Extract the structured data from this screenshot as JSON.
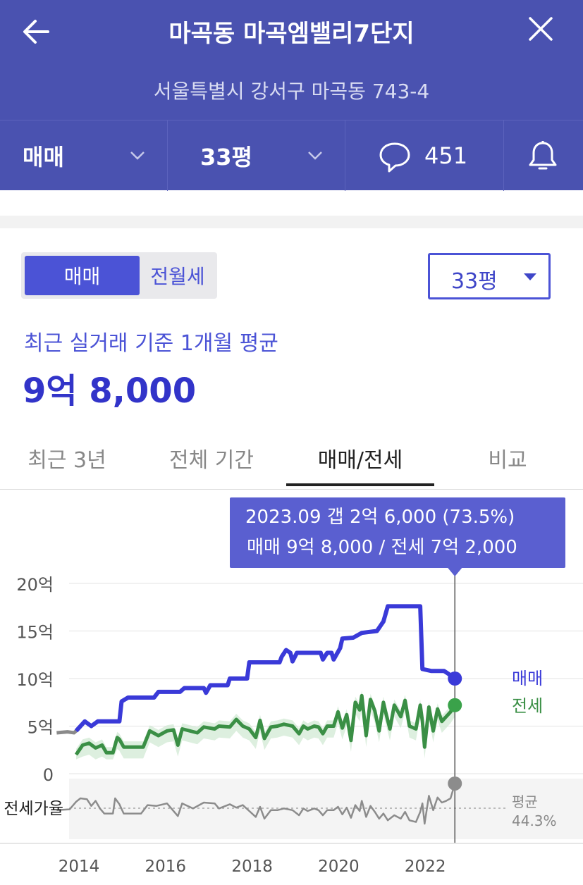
{
  "header": {
    "title": "마곡동 마곡엠밸리7단지",
    "address": "서울특별시 강서구 마곡동 743-4"
  },
  "filters": {
    "trade_type": "매매",
    "area": "33평",
    "comment_count": "451"
  },
  "panel": {
    "segments": [
      "매매",
      "전월세"
    ],
    "active_segment": "매매",
    "area_select": "33평",
    "avg_caption": "최근 실거래 기준 1개월 평균",
    "avg_price": "9억 8,000"
  },
  "tabs": [
    "최근 3년",
    "전체 기간",
    "매매/전세",
    "비교"
  ],
  "active_tab": "매매/전세",
  "tooltip": {
    "line1": "2023.09  갭 2억 6,000 (73.5%)",
    "line2": "매매 9억 8,000 / 전세 7억 2,000"
  },
  "colors": {
    "header_bg": "#4a52b0",
    "sale": "#3a3ad8",
    "jeonse": "#3a8f45",
    "ratio": "#8c8c8c",
    "tooltip_bg": "#5a5fd0"
  },
  "chart_data": {
    "type": "line",
    "ylabel": "",
    "y_ticks": [
      "20억",
      "15억",
      "10억",
      "5억",
      "0"
    ],
    "ylim": [
      0,
      20
    ],
    "x_ticks": [
      "2014",
      "2016",
      "2018",
      "2020",
      "2022"
    ],
    "xlim": [
      2013.6,
      2024.2
    ],
    "grid": true,
    "series": [
      {
        "name": "매매",
        "unit": "억",
        "points": [
          [
            2014.0,
            4.5
          ],
          [
            2014.2,
            5.5
          ],
          [
            2014.35,
            5.0
          ],
          [
            2014.5,
            5.5
          ],
          [
            2015.0,
            5.5
          ],
          [
            2015.05,
            7.6
          ],
          [
            2015.2,
            8.0
          ],
          [
            2015.8,
            8.0
          ],
          [
            2015.9,
            8.6
          ],
          [
            2016.4,
            8.6
          ],
          [
            2016.5,
            9.0
          ],
          [
            2016.95,
            9.0
          ],
          [
            2017.0,
            8.5
          ],
          [
            2017.1,
            9.3
          ],
          [
            2017.5,
            9.3
          ],
          [
            2017.55,
            10.0
          ],
          [
            2017.95,
            10.0
          ],
          [
            2018.0,
            11.7
          ],
          [
            2018.7,
            11.7
          ],
          [
            2018.75,
            12.3
          ],
          [
            2018.85,
            13.0
          ],
          [
            2018.95,
            12.7
          ],
          [
            2019.0,
            11.8
          ],
          [
            2019.1,
            12.7
          ],
          [
            2019.65,
            12.7
          ],
          [
            2019.7,
            12.0
          ],
          [
            2019.8,
            12.7
          ],
          [
            2019.9,
            12.7
          ],
          [
            2019.95,
            12.0
          ],
          [
            2020.1,
            13.2
          ],
          [
            2020.15,
            14.2
          ],
          [
            2020.4,
            14.3
          ],
          [
            2020.6,
            14.8
          ],
          [
            2020.95,
            15.0
          ],
          [
            2021.1,
            16.0
          ],
          [
            2021.2,
            17.6
          ],
          [
            2021.95,
            17.6
          ],
          [
            2022.0,
            11.0
          ],
          [
            2022.2,
            10.8
          ],
          [
            2022.5,
            10.8
          ],
          [
            2022.6,
            10.5
          ],
          [
            2022.75,
            10.0
          ]
        ]
      },
      {
        "name": "전세",
        "unit": "억",
        "points": [
          [
            2014.0,
            2.0
          ],
          [
            2014.15,
            3.0
          ],
          [
            2014.3,
            3.2
          ],
          [
            2014.45,
            2.7
          ],
          [
            2014.6,
            3.0
          ],
          [
            2014.7,
            2.2
          ],
          [
            2014.85,
            2.2
          ],
          [
            2014.95,
            3.8
          ],
          [
            2015.0,
            3.6
          ],
          [
            2015.1,
            2.8
          ],
          [
            2015.55,
            2.8
          ],
          [
            2015.7,
            4.5
          ],
          [
            2015.9,
            4.0
          ],
          [
            2016.1,
            4.5
          ],
          [
            2016.25,
            4.6
          ],
          [
            2016.35,
            3.0
          ],
          [
            2016.45,
            4.7
          ],
          [
            2016.8,
            4.3
          ],
          [
            2016.95,
            4.9
          ],
          [
            2017.2,
            4.7
          ],
          [
            2017.3,
            5.0
          ],
          [
            2017.55,
            4.9
          ],
          [
            2017.7,
            5.7
          ],
          [
            2017.85,
            5.0
          ],
          [
            2018.0,
            4.7
          ],
          [
            2018.15,
            3.8
          ],
          [
            2018.25,
            5.6
          ],
          [
            2018.35,
            3.7
          ],
          [
            2018.5,
            4.9
          ],
          [
            2018.65,
            5.0
          ],
          [
            2018.8,
            5.2
          ],
          [
            2019.0,
            5.0
          ],
          [
            2019.15,
            4.2
          ],
          [
            2019.25,
            5.0
          ],
          [
            2019.35,
            4.7
          ],
          [
            2019.5,
            5.0
          ],
          [
            2019.6,
            4.9
          ],
          [
            2019.7,
            4.2
          ],
          [
            2019.8,
            5.0
          ],
          [
            2019.95,
            5.0
          ],
          [
            2020.05,
            6.5
          ],
          [
            2020.15,
            4.8
          ],
          [
            2020.25,
            6.2
          ],
          [
            2020.35,
            3.5
          ],
          [
            2020.45,
            7.5
          ],
          [
            2020.55,
            6.7
          ],
          [
            2020.6,
            8.2
          ],
          [
            2020.7,
            4.0
          ],
          [
            2020.8,
            7.8
          ],
          [
            2020.9,
            6.6
          ],
          [
            2021.0,
            4.5
          ],
          [
            2021.1,
            7.5
          ],
          [
            2021.15,
            6.5
          ],
          [
            2021.25,
            4.7
          ],
          [
            2021.35,
            7.2
          ],
          [
            2021.5,
            6.0
          ],
          [
            2021.6,
            7.7
          ],
          [
            2021.7,
            5.0
          ],
          [
            2021.85,
            4.7
          ],
          [
            2021.95,
            7.2
          ],
          [
            2022.0,
            5.5
          ],
          [
            2022.05,
            2.8
          ],
          [
            2022.15,
            7.0
          ],
          [
            2022.25,
            4.5
          ],
          [
            2022.35,
            6.8
          ],
          [
            2022.45,
            5.5
          ],
          [
            2022.55,
            6.0
          ],
          [
            2022.65,
            6.5
          ],
          [
            2022.75,
            7.2
          ]
        ]
      },
      {
        "name": "전세가율",
        "unit": "%",
        "avg_label": "평균",
        "avg_value": "44.3%",
        "points": [
          [
            2013.55,
            42
          ],
          [
            2013.85,
            43
          ],
          [
            2014.0,
            52
          ],
          [
            2014.1,
            56
          ],
          [
            2014.25,
            55
          ],
          [
            2014.35,
            47
          ],
          [
            2014.45,
            53
          ],
          [
            2014.55,
            44
          ],
          [
            2014.65,
            38
          ],
          [
            2014.85,
            38
          ],
          [
            2014.9,
            56
          ],
          [
            2015.0,
            49
          ],
          [
            2015.1,
            38
          ],
          [
            2015.5,
            38
          ],
          [
            2015.65,
            48
          ],
          [
            2015.85,
            47
          ],
          [
            2016.1,
            50
          ],
          [
            2016.35,
            35
          ],
          [
            2016.45,
            50
          ],
          [
            2016.7,
            44
          ],
          [
            2016.95,
            51
          ],
          [
            2017.2,
            50
          ],
          [
            2017.3,
            44
          ],
          [
            2017.55,
            49
          ],
          [
            2017.7,
            45
          ],
          [
            2017.85,
            48
          ],
          [
            2018.0,
            41
          ],
          [
            2018.15,
            34
          ],
          [
            2018.25,
            46
          ],
          [
            2018.35,
            32
          ],
          [
            2018.5,
            42
          ],
          [
            2018.65,
            42
          ],
          [
            2018.8,
            44
          ],
          [
            2019.0,
            42
          ],
          [
            2019.15,
            36
          ],
          [
            2019.25,
            44
          ],
          [
            2019.35,
            41
          ],
          [
            2019.5,
            44
          ],
          [
            2019.6,
            42
          ],
          [
            2019.7,
            36
          ],
          [
            2019.8,
            42
          ],
          [
            2019.95,
            42
          ],
          [
            2020.05,
            46
          ],
          [
            2020.15,
            37
          ],
          [
            2020.25,
            45
          ],
          [
            2020.35,
            33
          ],
          [
            2020.45,
            48
          ],
          [
            2020.55,
            41
          ],
          [
            2020.6,
            53
          ],
          [
            2020.7,
            34
          ],
          [
            2020.8,
            47
          ],
          [
            2020.9,
            40
          ],
          [
            2021.0,
            32
          ],
          [
            2021.1,
            38
          ],
          [
            2021.2,
            30
          ],
          [
            2021.35,
            36
          ],
          [
            2021.5,
            32
          ],
          [
            2021.6,
            40
          ],
          [
            2021.7,
            30
          ],
          [
            2021.85,
            28
          ],
          [
            2021.95,
            40
          ],
          [
            2022.0,
            50
          ],
          [
            2022.05,
            26
          ],
          [
            2022.15,
            59
          ],
          [
            2022.25,
            42
          ],
          [
            2022.35,
            57
          ],
          [
            2022.45,
            51
          ],
          [
            2022.55,
            53
          ],
          [
            2022.65,
            56
          ],
          [
            2022.75,
            73.5
          ]
        ]
      }
    ],
    "legend": [
      "매매",
      "전세"
    ],
    "cursor": "2023.09"
  }
}
